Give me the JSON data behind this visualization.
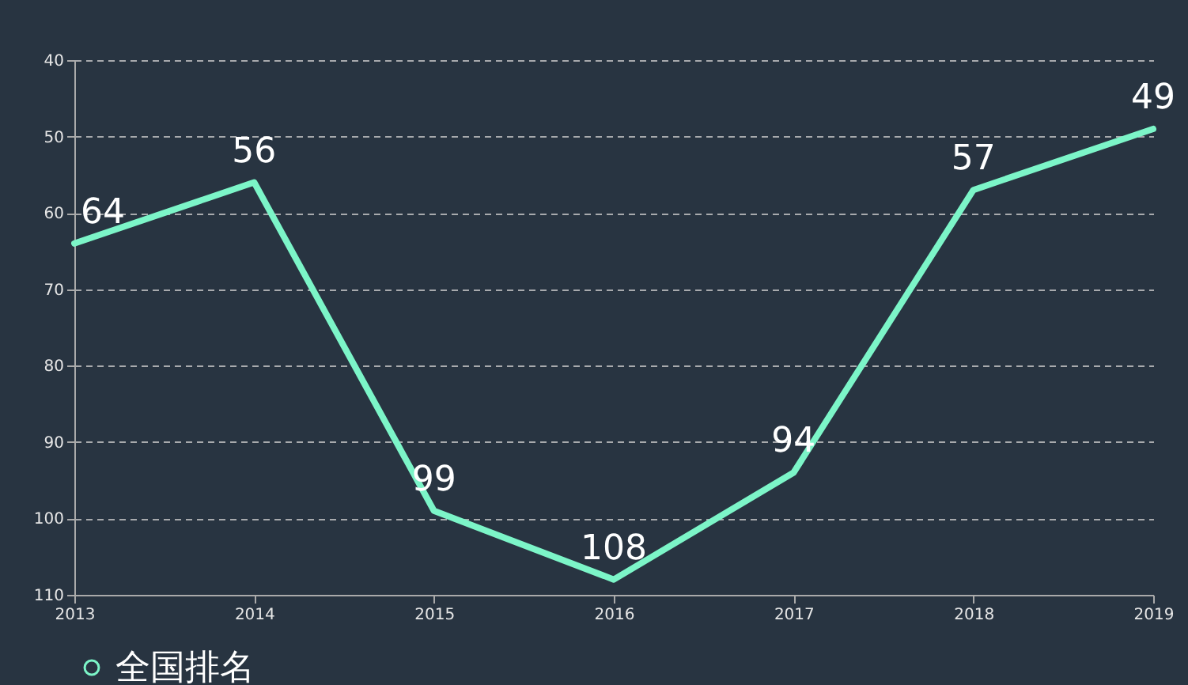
{
  "chart_data": {
    "type": "line",
    "categories": [
      "2013",
      "2014",
      "2015",
      "2016",
      "2017",
      "2018",
      "2019"
    ],
    "series": [
      {
        "name": "全国排名",
        "color": "#7cf5c8",
        "values": [
          64,
          56,
          99,
          108,
          94,
          57,
          49
        ]
      }
    ],
    "ylim": [
      110,
      40
    ],
    "yticks": [
      40,
      50,
      60,
      70,
      80,
      90,
      100,
      110
    ],
    "grid": "y",
    "legend": "bottom",
    "data_labels": true,
    "line_style": "solid"
  }
}
